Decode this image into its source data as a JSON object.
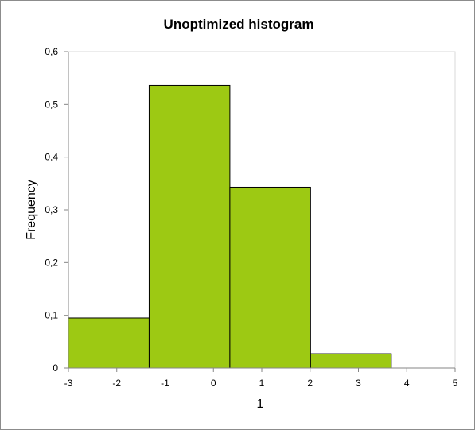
{
  "chart_data": {
    "type": "bar",
    "title": "Unoptimized histogram",
    "xlabel": "1",
    "ylabel": "Frequency",
    "xlim": [
      -3,
      5
    ],
    "ylim": [
      0,
      0.6
    ],
    "x_ticks": [
      -3,
      -2,
      -1,
      0,
      1,
      2,
      3,
      4,
      5
    ],
    "x_tick_labels": [
      "-3",
      "-2",
      "-1",
      "0",
      "1",
      "2",
      "3",
      "4",
      "5"
    ],
    "y_ticks": [
      0,
      0.1,
      0.2,
      0.3,
      0.4,
      0.5,
      0.6
    ],
    "y_tick_labels": [
      "0",
      "0,1",
      "0,2",
      "0,3",
      "0,4",
      "0,5",
      "0,6"
    ],
    "bins": [
      {
        "start": -3.0,
        "end": -1.33,
        "value": 0.095
      },
      {
        "start": -1.33,
        "end": 0.34,
        "value": 0.536
      },
      {
        "start": 0.34,
        "end": 2.01,
        "value": 0.343
      },
      {
        "start": 2.01,
        "end": 3.68,
        "value": 0.027
      }
    ],
    "grid": false,
    "legend": "none",
    "bar_color": "#9dc913",
    "bar_edge_color": "#000000",
    "axis_color": "#868686"
  }
}
